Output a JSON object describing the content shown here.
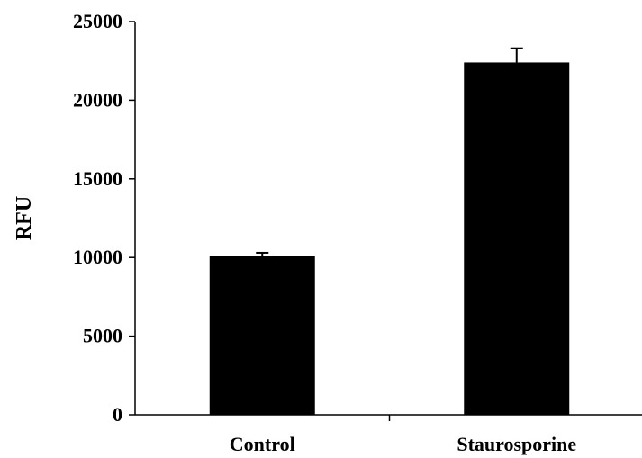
{
  "chart_data": {
    "type": "bar",
    "categories": [
      "Control",
      "Staurosporine"
    ],
    "values": [
      10100,
      22400
    ],
    "error": [
      200,
      900
    ],
    "ylabel": "RFU",
    "xlabel": "",
    "ylim": [
      0,
      25000
    ],
    "yticks": [
      0,
      5000,
      10000,
      15000,
      20000,
      25000
    ],
    "yticklabels": [
      "0",
      "5000",
      "10000",
      "15000",
      "20000",
      "25000"
    ],
    "grid": false,
    "bar_color": "#000000"
  }
}
